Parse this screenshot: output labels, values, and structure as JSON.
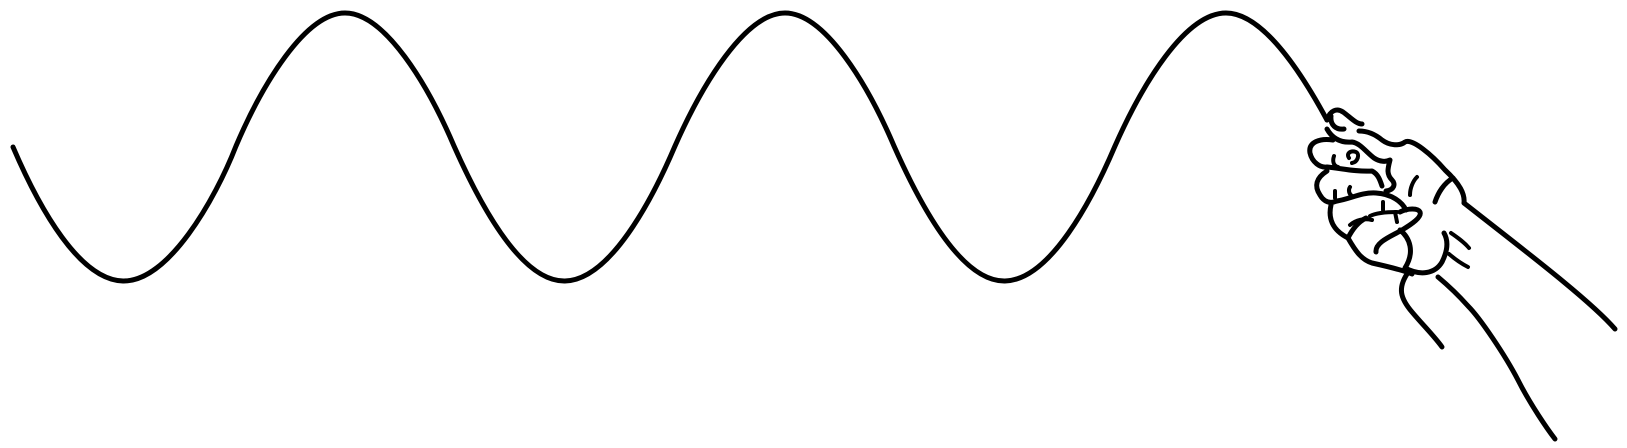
{
  "figure": {
    "background": "#ffffff",
    "stroke_color": "#000000",
    "subject": "hand-icon",
    "wave_peaks_visible": 3,
    "wave_troughs_visible": 3
  }
}
